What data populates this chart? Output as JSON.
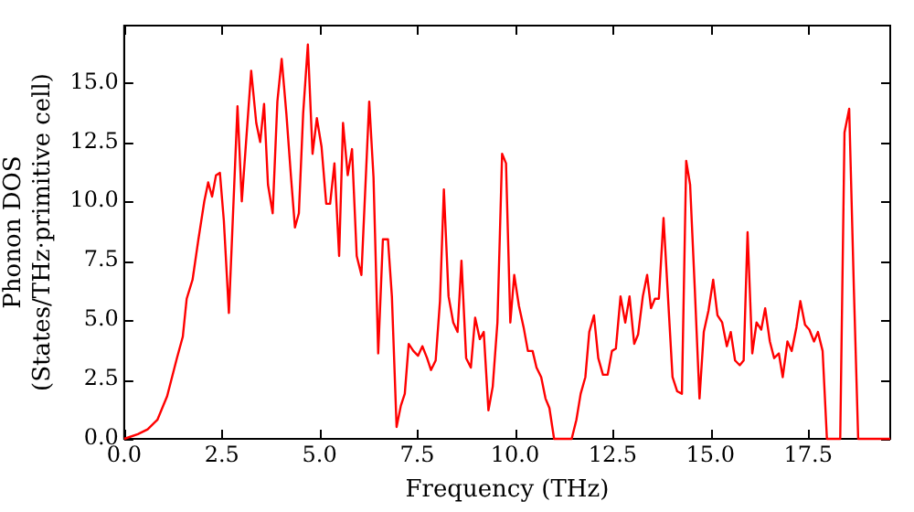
{
  "chart_data": {
    "type": "line",
    "xlabel": "Frequency (THz)",
    "ylabel": "Phonon DOS\n(States/THz·primitive cell)",
    "xlim": [
      0,
      19.6
    ],
    "ylim": [
      0,
      17.4
    ],
    "xticks": [
      {
        "value": 0,
        "label": "0.0"
      },
      {
        "value": 2.5,
        "label": "2.5"
      },
      {
        "value": 5,
        "label": "5.0"
      },
      {
        "value": 7.5,
        "label": "7.5"
      },
      {
        "value": 10,
        "label": "10.0"
      },
      {
        "value": 12.5,
        "label": "12.5"
      },
      {
        "value": 15,
        "label": "15.0"
      },
      {
        "value": 17.5,
        "label": "17.5"
      }
    ],
    "yticks": [
      {
        "value": 0,
        "label": "0.0"
      },
      {
        "value": 2.5,
        "label": "2.5"
      },
      {
        "value": 5,
        "label": "5.0"
      },
      {
        "value": 7.5,
        "label": "7.5"
      },
      {
        "value": 10,
        "label": "10.0"
      },
      {
        "value": 12.5,
        "label": "12.5"
      },
      {
        "value": 15,
        "label": "15.0"
      }
    ],
    "grid": false,
    "legend": false,
    "marker": "none",
    "line_style": "solid",
    "series": [
      {
        "color": "#ff0000",
        "x": [
          0,
          0.35,
          0.6,
          0.85,
          1.1,
          1.35,
          1.5,
          1.6,
          1.75,
          1.9,
          2.05,
          2.15,
          2.25,
          2.35,
          2.45,
          2.55,
          2.68,
          2.9,
          3.01,
          3.25,
          3.38,
          3.48,
          3.58,
          3.68,
          3.8,
          3.92,
          4.03,
          4.15,
          4.27,
          4.37,
          4.47,
          4.58,
          4.7,
          4.82,
          4.93,
          5.05,
          5.17,
          5.27,
          5.38,
          5.5,
          5.6,
          5.72,
          5.83,
          5.95,
          6.07,
          6.27,
          6.38,
          6.5,
          6.62,
          6.75,
          6.85,
          6.97,
          7.08,
          7.18,
          7.28,
          7.4,
          7.52,
          7.63,
          7.75,
          7.85,
          7.97,
          8.08,
          8.18,
          8.3,
          8.42,
          8.53,
          8.63,
          8.75,
          8.87,
          8.98,
          9.1,
          9.2,
          9.32,
          9.43,
          9.55,
          9.67,
          9.77,
          9.88,
          9.98,
          10.1,
          10.22,
          10.33,
          10.45,
          10.55,
          10.67,
          10.78,
          10.88,
          11.0,
          11.45,
          11.57,
          11.68,
          11.8,
          11.9,
          12.02,
          12.13,
          12.25,
          12.37,
          12.48,
          12.58,
          12.7,
          12.82,
          12.93,
          13.05,
          13.15,
          13.27,
          13.38,
          13.48,
          13.58,
          13.68,
          13.8,
          13.92,
          14.03,
          14.15,
          14.27,
          14.38,
          14.48,
          14.6,
          14.72,
          14.83,
          14.95,
          15.07,
          15.18,
          15.3,
          15.42,
          15.52,
          15.63,
          15.75,
          15.85,
          15.95,
          16.07,
          16.18,
          16.3,
          16.4,
          16.52,
          16.63,
          16.75,
          16.85,
          16.97,
          17.08,
          17.2,
          17.3,
          17.42,
          17.53,
          17.65,
          17.75,
          17.87,
          17.98,
          18.32,
          18.43,
          18.55,
          18.67,
          18.78,
          19.6
        ],
        "values": [
          0,
          0.2,
          0.4,
          0.8,
          1.8,
          3.4,
          4.3,
          5.9,
          6.7,
          8.4,
          10,
          10.8,
          10.2,
          11.1,
          11.2,
          9.2,
          5.3,
          14,
          10,
          15.5,
          13.3,
          12.5,
          14.1,
          10.7,
          9.5,
          14.2,
          16,
          13.7,
          11,
          8.9,
          9.5,
          13.7,
          16.6,
          12,
          13.5,
          12.3,
          9.9,
          9.9,
          11.6,
          7.7,
          13.3,
          11.1,
          12.2,
          7.7,
          6.9,
          14.2,
          11,
          3.6,
          8.4,
          8.4,
          6,
          0.5,
          1.4,
          1.9,
          4,
          3.7,
          3.5,
          3.9,
          3.4,
          2.9,
          3.3,
          5.8,
          10.5,
          6,
          4.9,
          4.5,
          7.5,
          3.4,
          3,
          5.1,
          4.2,
          4.5,
          1.2,
          2.2,
          4.9,
          12,
          11.6,
          4.9,
          6.9,
          5.6,
          4.7,
          3.7,
          3.7,
          3,
          2.6,
          1.7,
          1.3,
          0,
          0,
          0.8,
          1.9,
          2.6,
          4.5,
          5.2,
          3.4,
          2.7,
          2.7,
          3.7,
          3.8,
          6,
          4.9,
          6,
          4,
          4.4,
          6,
          6.9,
          5.5,
          5.9,
          5.9,
          9.3,
          5.8,
          2.6,
          2,
          1.9,
          11.7,
          10.7,
          6.3,
          1.7,
          4.5,
          5.4,
          6.7,
          5.2,
          4.9,
          3.9,
          4.5,
          3.3,
          3.1,
          3.3,
          8.7,
          3.6,
          4.9,
          4.6,
          5.5,
          4.1,
          3.4,
          3.6,
          2.6,
          4.1,
          3.7,
          4.7,
          5.8,
          4.8,
          4.6,
          4.1,
          4.5,
          3.7,
          0,
          0,
          12.9,
          13.9,
          6.3,
          0,
          0
        ]
      }
    ]
  }
}
